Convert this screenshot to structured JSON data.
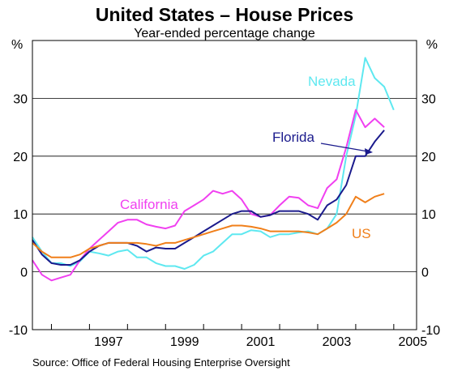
{
  "chart_data": {
    "type": "line",
    "title": "United States – House Prices",
    "subtitle": "Year-ended percentage change",
    "ylabel_left": "%",
    "ylabel_right": "%",
    "ylim": [
      -10,
      40
    ],
    "yticks": [
      -10,
      0,
      10,
      20,
      30
    ],
    "xlim": [
      1995.5,
      2005.6
    ],
    "xticks": [
      1997,
      1999,
      2001,
      2003,
      2005
    ],
    "source": "Source: Office of Federal Housing Enterprise Oversight",
    "series": [
      {
        "name": "Nevada",
        "color": "#5ee8f0",
        "x": [
          1995.5,
          1995.75,
          1996,
          1996.25,
          1996.5,
          1996.75,
          1997,
          1997.25,
          1997.5,
          1997.75,
          1998,
          1998.25,
          1998.5,
          1998.75,
          1999,
          1999.25,
          1999.5,
          1999.75,
          2000,
          2000.25,
          2000.5,
          2000.75,
          2001,
          2001.25,
          2001.5,
          2001.75,
          2002,
          2002.25,
          2002.5,
          2002.75,
          2003,
          2003.25,
          2003.5,
          2003.75,
          2004,
          2004.25,
          2004.5,
          2004.75,
          2005,
          2005.25
        ],
        "values": [
          6.0,
          3.5,
          1.5,
          1.5,
          1.0,
          1.8,
          3.5,
          3.2,
          2.8,
          3.5,
          3.8,
          2.5,
          2.5,
          1.5,
          1.0,
          1.0,
          0.5,
          1.2,
          2.8,
          3.5,
          5.0,
          6.5,
          6.5,
          7.2,
          7.0,
          6.0,
          6.5,
          6.5,
          6.8,
          7.0,
          6.5,
          7.5,
          10.0,
          20.0,
          27.0,
          37.0,
          33.5,
          32.0,
          28.0,
          null
        ]
      },
      {
        "name": "California",
        "color": "#f040f0",
        "x": [
          1995.5,
          1995.75,
          1996,
          1996.25,
          1996.5,
          1996.75,
          1997,
          1997.25,
          1997.5,
          1997.75,
          1998,
          1998.25,
          1998.5,
          1998.75,
          1999,
          1999.25,
          1999.5,
          1999.75,
          2000,
          2000.25,
          2000.5,
          2000.75,
          2001,
          2001.25,
          2001.5,
          2001.75,
          2002,
          2002.25,
          2002.5,
          2002.75,
          2003,
          2003.25,
          2003.5,
          2003.75,
          2004,
          2004.25,
          2004.5,
          2004.75,
          2005,
          2005.25
        ],
        "values": [
          2.0,
          -0.5,
          -1.5,
          -1.0,
          -0.5,
          2.0,
          4.0,
          5.5,
          7.0,
          8.5,
          9.0,
          9.0,
          8.2,
          7.8,
          7.5,
          8.0,
          10.5,
          11.5,
          12.5,
          14.0,
          13.5,
          14.0,
          12.5,
          10.0,
          9.5,
          9.8,
          11.5,
          13.0,
          12.8,
          11.5,
          11.0,
          14.5,
          16.0,
          21.5,
          28.0,
          25.0,
          26.5,
          25.0,
          null,
          null
        ]
      },
      {
        "name": "Florida",
        "color": "#1a1a8c",
        "x": [
          1995.5,
          1995.75,
          1996,
          1996.25,
          1996.5,
          1996.75,
          1997,
          1997.25,
          1997.5,
          1997.75,
          1998,
          1998.25,
          1998.5,
          1998.75,
          1999,
          1999.25,
          1999.5,
          1999.75,
          2000,
          2000.25,
          2000.5,
          2000.75,
          2001,
          2001.25,
          2001.5,
          2001.75,
          2002,
          2002.25,
          2002.5,
          2002.75,
          2003,
          2003.25,
          2003.5,
          2003.75,
          2004,
          2004.25,
          2004.5,
          2004.75,
          2005,
          2005.25
        ],
        "values": [
          5.5,
          3.0,
          1.5,
          1.2,
          1.2,
          2.0,
          3.5,
          4.5,
          5.0,
          5.0,
          5.0,
          4.5,
          3.5,
          4.2,
          4.0,
          4.0,
          5.0,
          6.0,
          7.0,
          8.0,
          9.0,
          10.0,
          10.5,
          10.5,
          9.5,
          9.8,
          10.5,
          10.5,
          10.5,
          10.0,
          9.0,
          11.5,
          12.5,
          15.0,
          20.0,
          20.0,
          22.5,
          24.5,
          null,
          null
        ]
      },
      {
        "name": "US",
        "color": "#f07f1a",
        "x": [
          1995.5,
          1995.75,
          1996,
          1996.25,
          1996.5,
          1996.75,
          1997,
          1997.25,
          1997.5,
          1997.75,
          1998,
          1998.25,
          1998.5,
          1998.75,
          1999,
          1999.25,
          1999.5,
          1999.75,
          2000,
          2000.25,
          2000.5,
          2000.75,
          2001,
          2001.25,
          2001.5,
          2001.75,
          2002,
          2002.25,
          2002.5,
          2002.75,
          2003,
          2003.25,
          2003.5,
          2003.75,
          2004,
          2004.25,
          2004.5,
          2004.75,
          2005,
          2005.25
        ],
        "values": [
          5.0,
          3.5,
          2.5,
          2.5,
          2.5,
          3.0,
          4.0,
          4.5,
          5.0,
          5.0,
          5.0,
          5.0,
          4.8,
          4.5,
          5.0,
          5.0,
          5.5,
          6.0,
          6.5,
          7.0,
          7.5,
          8.0,
          8.0,
          7.8,
          7.5,
          7.0,
          7.0,
          7.0,
          7.0,
          6.8,
          6.5,
          7.5,
          8.5,
          10.0,
          13.0,
          12.0,
          13.0,
          13.5,
          null,
          null
        ]
      }
    ],
    "annotations": [
      {
        "text": "Nevada",
        "series": "Nevada"
      },
      {
        "text": "California",
        "series": "California"
      },
      {
        "text": "Florida",
        "series": "Florida",
        "arrow": true
      },
      {
        "text": "US",
        "series": "US"
      }
    ]
  }
}
